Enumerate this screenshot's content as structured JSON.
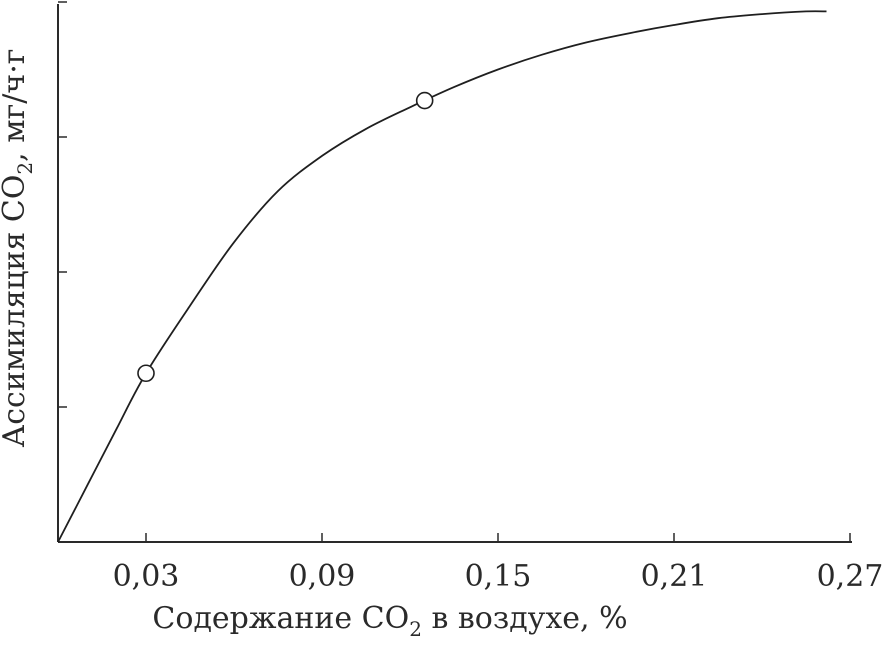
{
  "chart_data": {
    "type": "line",
    "title": "",
    "xlabel": {
      "prefix": "Содержание CO",
      "subscript": "2",
      "suffix": " в воздухе, %"
    },
    "ylabel": {
      "prefix": "Ассимиляция CO",
      "subscript": "2",
      "suffix": ", мг/ч·г"
    },
    "x_ticks": [
      "0,03",
      "0,09",
      "0,15",
      "0,21",
      "0,27"
    ],
    "x_tick_values": [
      0.03,
      0.09,
      0.15,
      0.21,
      0.27
    ],
    "y_tick_count": 4,
    "xlim": [
      0.0,
      0.27
    ],
    "ylim": [
      0.0,
      4.0
    ],
    "y_ticks_labeled": false,
    "grid": false,
    "series": [
      {
        "x": [
          0.0,
          0.01,
          0.02,
          0.03,
          0.045,
          0.06,
          0.075,
          0.09,
          0.105,
          0.12,
          0.135,
          0.15,
          0.165,
          0.18,
          0.195,
          0.21,
          0.225,
          0.24,
          0.255,
          0.262
        ],
        "y": [
          0.0,
          0.42,
          0.84,
          1.25,
          1.75,
          2.22,
          2.6,
          2.86,
          3.06,
          3.22,
          3.37,
          3.5,
          3.61,
          3.7,
          3.77,
          3.83,
          3.88,
          3.91,
          3.93,
          3.93
        ]
      }
    ],
    "markers": [
      {
        "x": 0.03,
        "y": 1.25
      },
      {
        "x": 0.125,
        "y": 3.27
      }
    ]
  }
}
